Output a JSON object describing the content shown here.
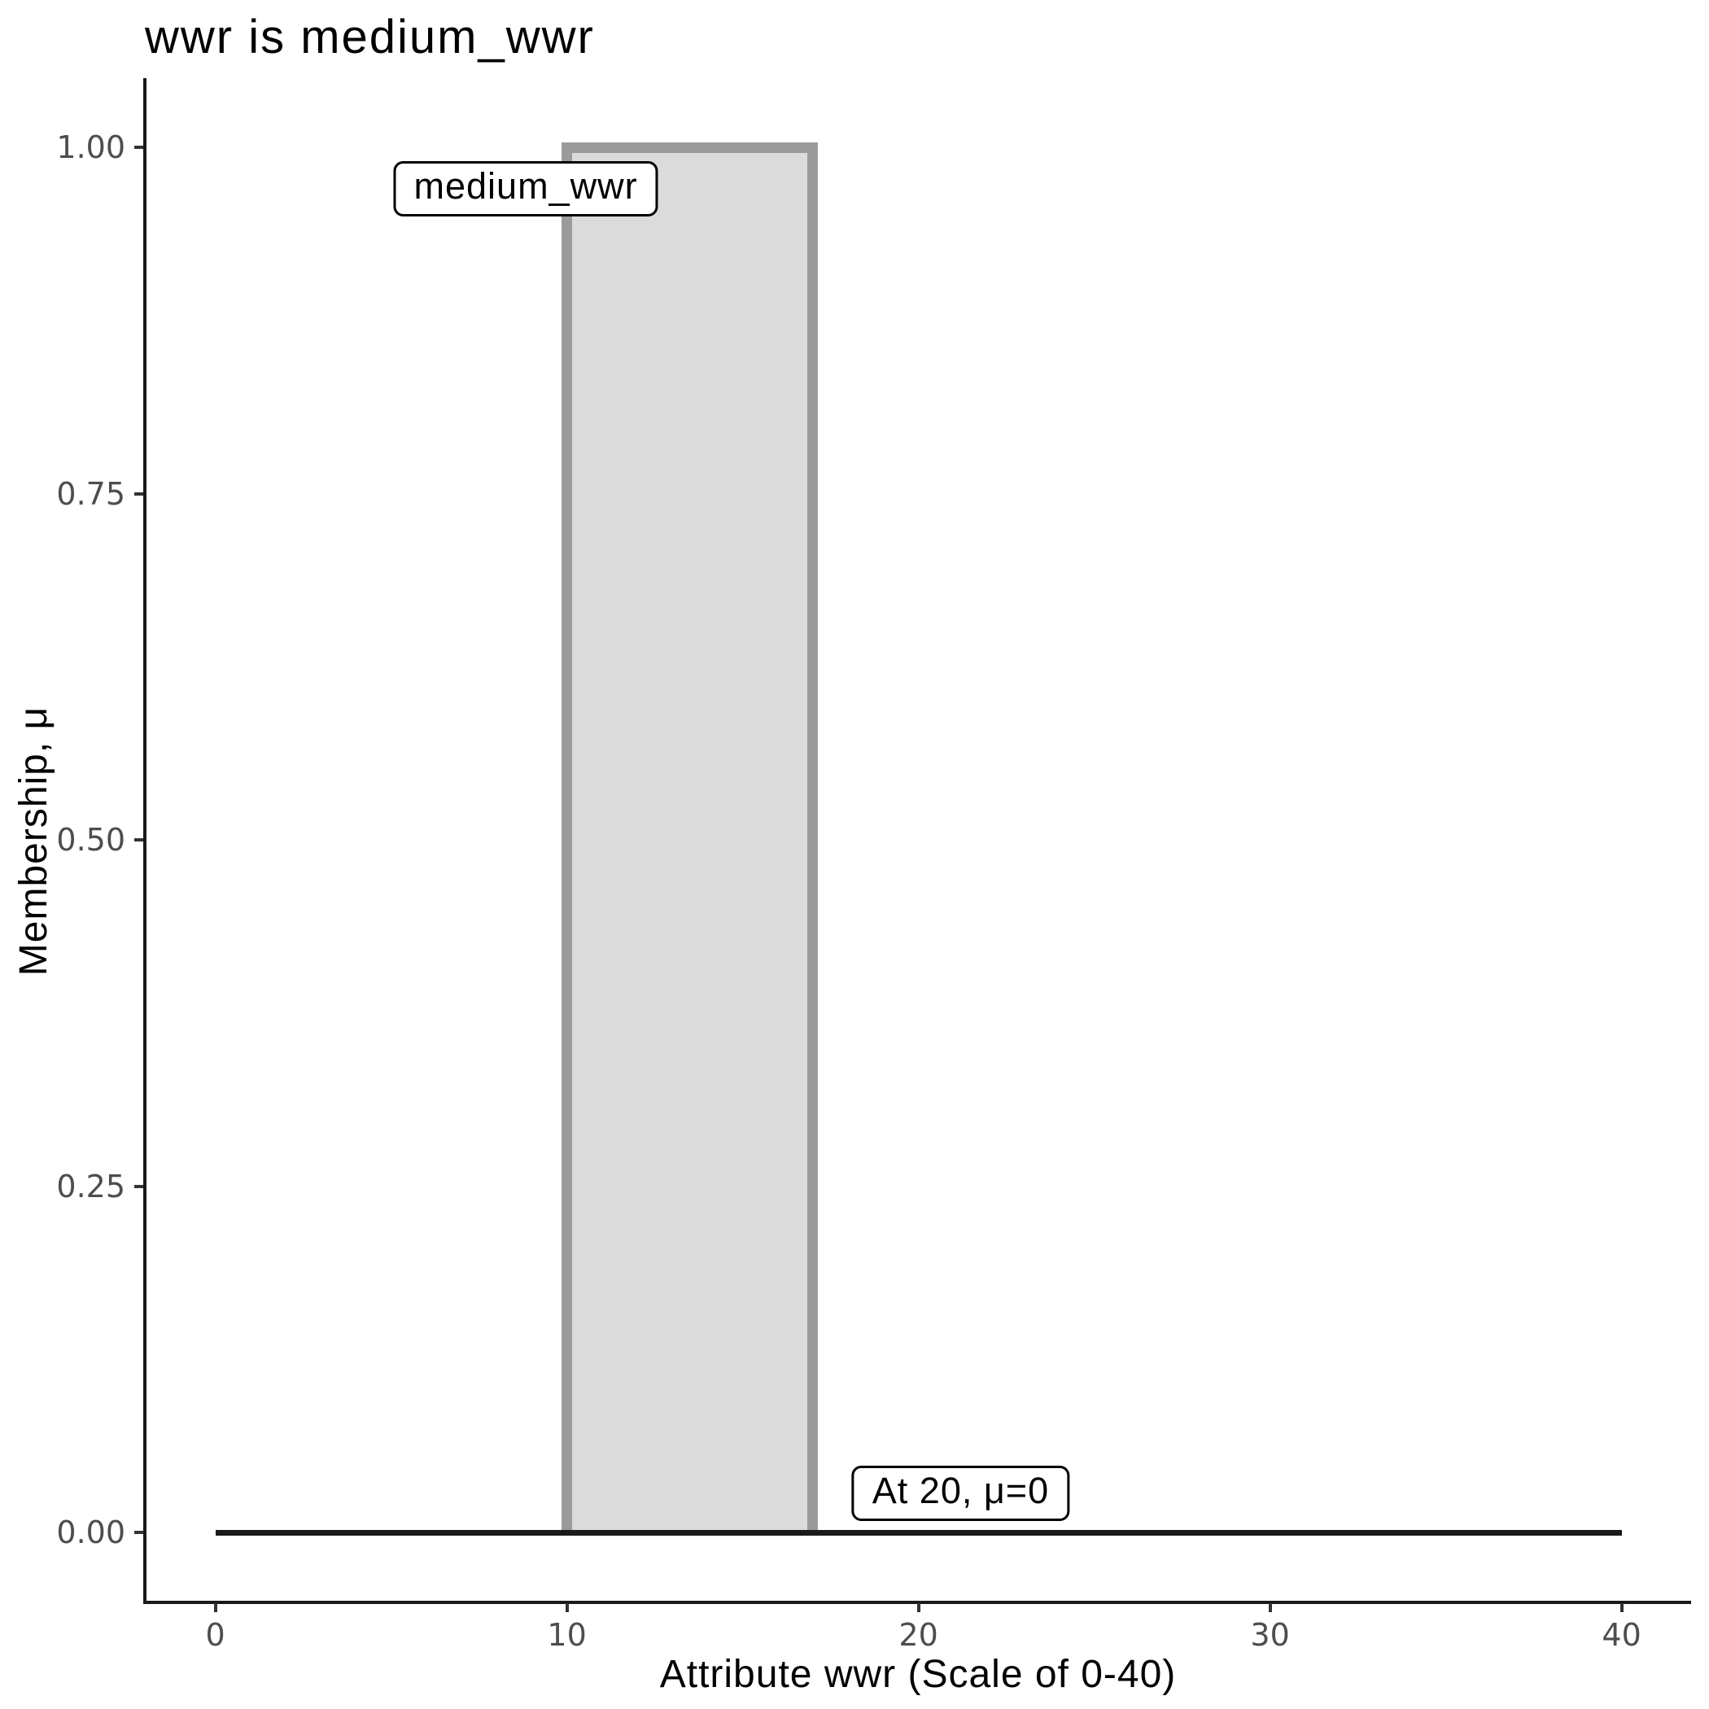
{
  "chart": {
    "title": "wwr is medium_wwr",
    "xlabel": "Attribute wwr (Scale of 0-40)",
    "ylabel": "Membership, μ"
  },
  "chart_data": {
    "type": "area",
    "subtype": "fuzzy-membership-function",
    "title": "wwr is medium_wwr",
    "xlabel": "Attribute wwr (Scale of 0-40)",
    "ylabel": "Membership, μ",
    "xlim": [
      0,
      40
    ],
    "ylim": [
      0,
      1
    ],
    "axis_expansion": 0.05,
    "x_ticks": [
      0,
      10,
      20,
      30,
      40
    ],
    "x_tick_labels": [
      "0",
      "10",
      "20",
      "30",
      "40"
    ],
    "y_ticks": [
      1,
      0.75,
      0.5,
      0.25,
      0
    ],
    "y_tick_labels": [
      "1.00",
      "0.75",
      "0.50",
      "0.25",
      "0.00"
    ],
    "grid": false,
    "legend": false,
    "background": "#FFFFFF",
    "series": [
      {
        "name": "medium_wwr",
        "kind": "polygon",
        "points": [
          [
            10,
            0
          ],
          [
            10,
            1
          ],
          [
            17,
            1
          ],
          [
            17,
            0
          ]
        ],
        "fill": "#DBDBDB",
        "stroke": "#9B9B9B",
        "stroke_width": 13
      },
      {
        "name": "membership-level-at-input",
        "kind": "line",
        "points": [
          [
            0,
            0
          ],
          [
            40,
            0
          ]
        ],
        "stroke": "#1A1A1A",
        "stroke_width": 7
      }
    ],
    "annotations": [
      {
        "id": "set-label",
        "text": "medium_wwr",
        "x": 8.83,
        "mu": 0.97
      },
      {
        "id": "evaluation",
        "text": "At 20, μ=0",
        "x": 21.2,
        "mu": 0.028
      }
    ],
    "colors": {
      "tick_label": "#4D4D4D",
      "tick_mark": "#333333",
      "axis_line": "#1A1A1A",
      "title_text": "#000000"
    }
  }
}
